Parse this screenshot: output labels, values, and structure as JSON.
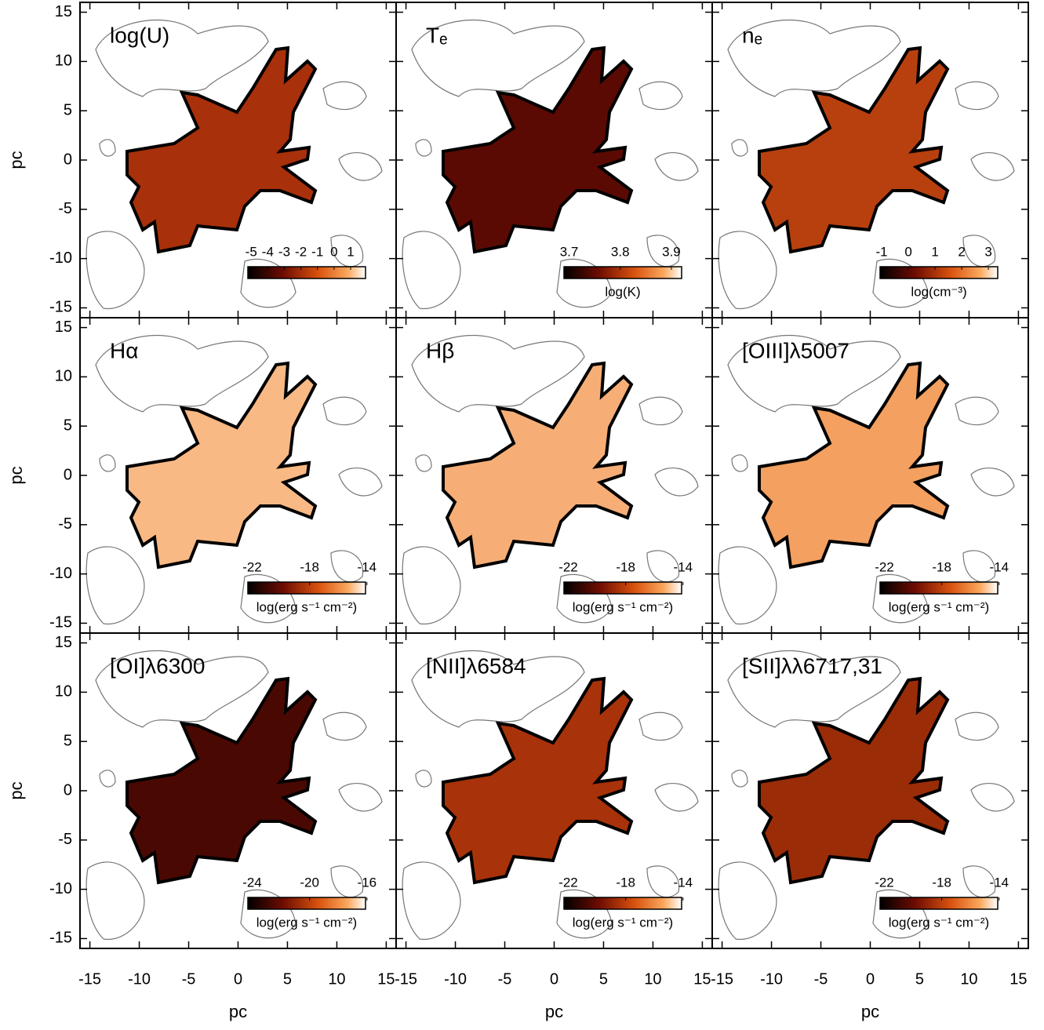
{
  "chart_data": [
    {
      "type": "image",
      "title": "log(U)",
      "ylabel": "pc",
      "xlim": [
        -16,
        16
      ],
      "ylim": [
        -16,
        16
      ],
      "xticks": [
        -15,
        -10,
        -5,
        0,
        5,
        10,
        15
      ],
      "yticks": [
        -15,
        -10,
        -5,
        0,
        5,
        10,
        15
      ],
      "clim": [
        -5.2,
        1.9
      ],
      "cticks": [
        -5,
        -4,
        -3,
        -2,
        -1,
        0,
        1
      ]
    },
    {
      "type": "image",
      "title": "Tₑ",
      "xlim": [
        -16,
        16
      ],
      "ylim": [
        -16,
        16
      ],
      "xticks": [
        -15,
        -10,
        -5,
        0,
        5,
        10,
        15
      ],
      "yticks": [
        -15,
        -10,
        -5,
        0,
        5,
        10,
        15
      ],
      "clim": [
        3.69,
        3.92
      ],
      "cticks": [
        3.7,
        3.8,
        3.9
      ],
      "clabel": "log(K)"
    },
    {
      "type": "image",
      "title": "nₑ",
      "xlim": [
        -16,
        16
      ],
      "ylim": [
        -16,
        16
      ],
      "xticks": [
        -15,
        -10,
        -5,
        0,
        5,
        10,
        15
      ],
      "yticks": [
        -15,
        -10,
        -5,
        0,
        5,
        10,
        15
      ],
      "clim": [
        -1.06,
        3.35
      ],
      "cticks": [
        -1,
        0,
        1,
        2,
        3
      ],
      "clabel": "log(cm⁻³)"
    },
    {
      "type": "image",
      "title": "Hα",
      "ylabel": "pc",
      "xlim": [
        -16,
        16
      ],
      "ylim": [
        -16,
        16
      ],
      "xticks": [
        -15,
        -10,
        -5,
        0,
        5,
        10,
        15
      ],
      "yticks": [
        -15,
        -10,
        -5,
        0,
        5,
        10,
        15
      ],
      "clim": [
        -22.3,
        -14.1
      ],
      "cticks": [
        -22,
        -18,
        -14
      ],
      "clabel": "log(erg s⁻¹ cm⁻²)"
    },
    {
      "type": "image",
      "title": "Hβ",
      "xlim": [
        -16,
        16
      ],
      "ylim": [
        -16,
        16
      ],
      "xticks": [
        -15,
        -10,
        -5,
        0,
        5,
        10,
        15
      ],
      "yticks": [
        -15,
        -10,
        -5,
        0,
        5,
        10,
        15
      ],
      "clim": [
        -22.3,
        -14.1
      ],
      "cticks": [
        -22,
        -18,
        -14
      ],
      "clabel": "log(erg s⁻¹ cm⁻²)"
    },
    {
      "type": "image",
      "title": "[OIII]λ5007",
      "xlim": [
        -16,
        16
      ],
      "ylim": [
        -16,
        16
      ],
      "xticks": [
        -15,
        -10,
        -5,
        0,
        5,
        10,
        15
      ],
      "yticks": [
        -15,
        -10,
        -5,
        0,
        5,
        10,
        15
      ],
      "clim": [
        -22.3,
        -14.1
      ],
      "cticks": [
        -22,
        -18,
        -14
      ],
      "clabel": "log(erg s⁻¹ cm⁻²)"
    },
    {
      "type": "image",
      "title": "[OI]λ6300",
      "xlabel": "pc",
      "ylabel": "pc",
      "xlim": [
        -16,
        16
      ],
      "ylim": [
        -16,
        16
      ],
      "xticks": [
        -15,
        -10,
        -5,
        0,
        5,
        10,
        15
      ],
      "yticks": [
        -15,
        -10,
        -5,
        0,
        5,
        10,
        15
      ],
      "clim": [
        -24.3,
        -16.1
      ],
      "cticks": [
        -24,
        -20,
        -16
      ],
      "clabel": "log(erg s⁻¹ cm⁻²)"
    },
    {
      "type": "image",
      "title": "[NII]λ6584",
      "xlabel": "pc",
      "xlim": [
        -16,
        16
      ],
      "ylim": [
        -16,
        16
      ],
      "xticks": [
        -15,
        -10,
        -5,
        0,
        5,
        10,
        15
      ],
      "yticks": [
        -15,
        -10,
        -5,
        0,
        5,
        10,
        15
      ],
      "clim": [
        -22.3,
        -14.1
      ],
      "cticks": [
        -22,
        -18,
        -14
      ],
      "clabel": "log(erg s⁻¹ cm⁻²)"
    },
    {
      "type": "image",
      "title": "[SII]λλ6717,31",
      "xlabel": "pc",
      "xlim": [
        -16,
        16
      ],
      "ylim": [
        -16,
        16
      ],
      "xticks": [
        -15,
        -10,
        -5,
        0,
        5,
        10,
        15
      ],
      "yticks": [
        -15,
        -10,
        -5,
        0,
        5,
        10,
        15
      ],
      "clim": [
        -22.3,
        -14.1
      ],
      "cticks": [
        -22,
        -18,
        -14
      ],
      "clabel": "log(erg s⁻¹ cm⁻²)"
    }
  ]
}
